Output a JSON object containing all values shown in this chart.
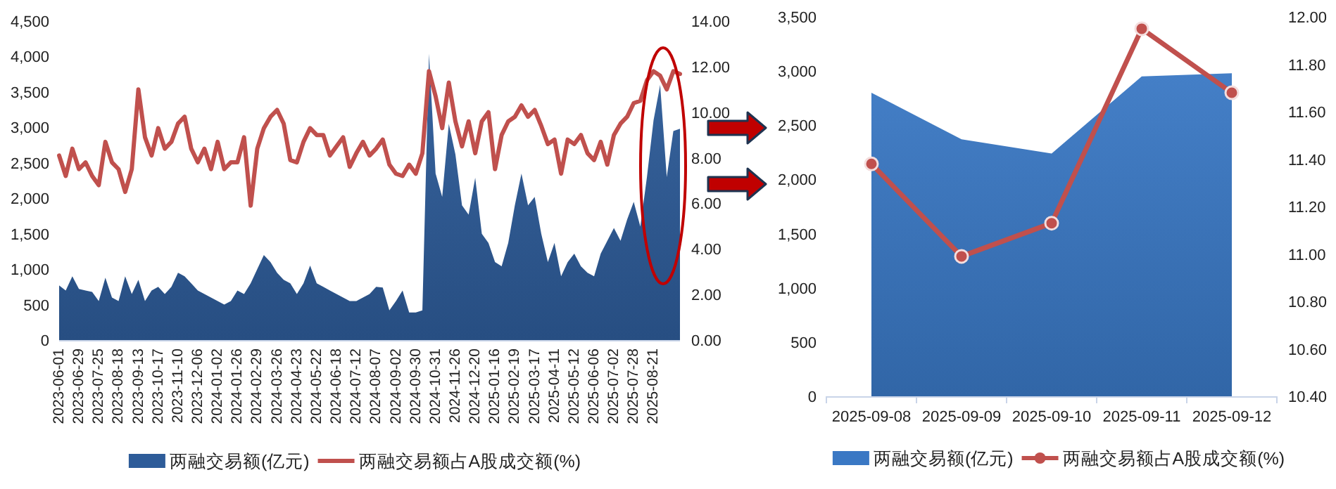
{
  "chart_data": [
    {
      "type": "area",
      "categories": [
        "2023-06-01",
        null,
        null,
        "2023-06-29",
        null,
        null,
        "2023-07-25",
        null,
        null,
        "2023-08-18",
        null,
        null,
        "2023-09-13",
        null,
        null,
        "2023-10-17",
        null,
        null,
        "2023-11-10",
        null,
        null,
        "2023-12-06",
        null,
        null,
        "2024-01-02",
        null,
        null,
        "2024-01-26",
        null,
        null,
        "2024-02-29",
        null,
        null,
        "2024-03-26",
        null,
        null,
        "2024-04-23",
        null,
        null,
        "2024-05-22",
        null,
        null,
        "2024-06-18",
        null,
        null,
        "2024-07-12",
        null,
        null,
        "2024-08-07",
        null,
        null,
        "2024-09-02",
        null,
        null,
        "2024-09-30",
        null,
        null,
        "2024-10-31",
        null,
        null,
        "2024-11-26",
        null,
        null,
        "2024-12-20",
        null,
        null,
        "2025-01-16",
        null,
        null,
        "2025-02-19",
        null,
        null,
        "2025-03-17",
        null,
        null,
        "2025-04-11",
        null,
        null,
        "2025-05-12",
        null,
        null,
        "2025-06-06",
        null,
        null,
        "2025-07-02",
        null,
        null,
        "2025-07-28",
        null,
        null,
        "2025-08-21",
        null,
        null,
        null,
        null
      ],
      "series": [
        {
          "name": "两融交易额(亿元)",
          "color": "#2e5c99",
          "values": [
            770,
            700,
            900,
            720,
            700,
            680,
            550,
            880,
            600,
            550,
            900,
            650,
            850,
            550,
            700,
            750,
            650,
            750,
            950,
            900,
            800,
            700,
            650,
            600,
            550,
            500,
            550,
            700,
            650,
            800,
            1000,
            1200,
            1100,
            950,
            850,
            800,
            650,
            800,
            1050,
            800,
            750,
            700,
            650,
            600,
            550,
            550,
            600,
            650,
            750,
            740,
            420,
            550,
            700,
            390,
            390,
            420,
            4040,
            2350,
            2020,
            3050,
            2620,
            1900,
            1770,
            2290,
            1500,
            1370,
            1100,
            1040,
            1370,
            1900,
            2350,
            1900,
            2020,
            1500,
            1100,
            1370,
            900,
            1100,
            1220,
            1040,
            950,
            900,
            1220,
            1400,
            1580,
            1400,
            1700,
            1950,
            1600,
            2300,
            3100,
            3600,
            2300,
            2950,
            2980
          ]
        },
        {
          "name": "两融交易额占A股成交额(%)",
          "type": "line",
          "axis": "y2",
          "color": "#c0504d",
          "values": [
            8.1,
            7.2,
            8.4,
            7.5,
            7.8,
            7.2,
            6.8,
            8.7,
            7.8,
            7.5,
            6.5,
            7.5,
            11.0,
            8.9,
            8.1,
            9.3,
            8.4,
            8.7,
            9.5,
            9.8,
            8.4,
            7.8,
            8.4,
            7.5,
            8.7,
            7.5,
            7.8,
            7.8,
            8.9,
            5.9,
            8.4,
            9.3,
            9.8,
            10.1,
            9.5,
            7.9,
            7.8,
            8.7,
            9.3,
            9.0,
            9.0,
            8.1,
            8.5,
            8.9,
            7.6,
            8.2,
            8.7,
            8.1,
            8.4,
            8.8,
            7.7,
            7.3,
            7.2,
            7.7,
            7.3,
            8.2,
            11.8,
            10.7,
            9.3,
            11.3,
            9.6,
            8.5,
            9.6,
            8.2,
            9.6,
            10.0,
            7.5,
            9.0,
            9.6,
            9.8,
            10.3,
            9.8,
            10.1,
            9.4,
            8.6,
            8.8,
            7.3,
            8.8,
            8.6,
            9.0,
            8.2,
            7.9,
            8.7,
            7.7,
            9.0,
            9.5,
            9.8,
            10.4,
            10.5,
            11.4,
            11.8,
            11.6,
            11.0,
            11.8,
            11.68
          ]
        }
      ],
      "ylim": [
        0,
        4500
      ],
      "yticks": [
        {
          "value": 0,
          "label": "0"
        },
        {
          "value": 500,
          "label": "500"
        },
        {
          "value": 1000,
          "label": "1,000"
        },
        {
          "value": 1500,
          "label": "1,500"
        },
        {
          "value": 2000,
          "label": "2,000"
        },
        {
          "value": 2500,
          "label": "2,500"
        },
        {
          "value": 3000,
          "label": "3,000"
        },
        {
          "value": 3500,
          "label": "3,500"
        },
        {
          "value": 4000,
          "label": "4,000"
        },
        {
          "value": 4500,
          "label": "4,500"
        }
      ],
      "y2lim": [
        0,
        14
      ],
      "y2ticks": [
        {
          "value": 0,
          "label": "0.00"
        },
        {
          "value": 2,
          "label": "2.00"
        },
        {
          "value": 4,
          "label": "4.00"
        },
        {
          "value": 6,
          "label": "6.00"
        },
        {
          "value": 8,
          "label": "8.00"
        },
        {
          "value": 10,
          "label": "10.00"
        },
        {
          "value": 12,
          "label": "12.00"
        },
        {
          "value": 14,
          "label": "14.00"
        }
      ],
      "legend": "bottom"
    },
    {
      "type": "area",
      "categories": [
        "2025-09-08",
        "2025-09-09",
        "2025-09-10",
        "2025-09-11",
        "2025-09-12"
      ],
      "series": [
        {
          "name": "两融交易额(亿元)",
          "color": "#3a78c4",
          "values": [
            2800,
            2370,
            2240,
            2950,
            2980
          ]
        },
        {
          "name": "两融交易额占A股成交额(%)",
          "type": "line",
          "axis": "y2",
          "color": "#c0504d",
          "marker": "circle",
          "values": [
            11.38,
            10.99,
            11.13,
            11.95,
            11.68
          ]
        }
      ],
      "ylim": [
        0,
        3500
      ],
      "yticks": [
        {
          "value": 0,
          "label": "0"
        },
        {
          "value": 500,
          "label": "500"
        },
        {
          "value": 1000,
          "label": "1,000"
        },
        {
          "value": 1500,
          "label": "1,500"
        },
        {
          "value": 2000,
          "label": "2,000"
        },
        {
          "value": 2500,
          "label": "2,500"
        },
        {
          "value": 3000,
          "label": "3,000"
        },
        {
          "value": 3500,
          "label": "3,500"
        }
      ],
      "y2lim": [
        10.4,
        12
      ],
      "y2ticks": [
        {
          "value": 10.4,
          "label": "10.40"
        },
        {
          "value": 10.6,
          "label": "10.60"
        },
        {
          "value": 10.8,
          "label": "10.80"
        },
        {
          "value": 11,
          "label": "11.00"
        },
        {
          "value": 11.2,
          "label": "11.20"
        },
        {
          "value": 11.4,
          "label": "11.40"
        },
        {
          "value": 11.6,
          "label": "11.60"
        },
        {
          "value": 11.8,
          "label": "11.80"
        },
        {
          "value": 12,
          "label": "12.00"
        }
      ],
      "legend": "bottom"
    }
  ]
}
